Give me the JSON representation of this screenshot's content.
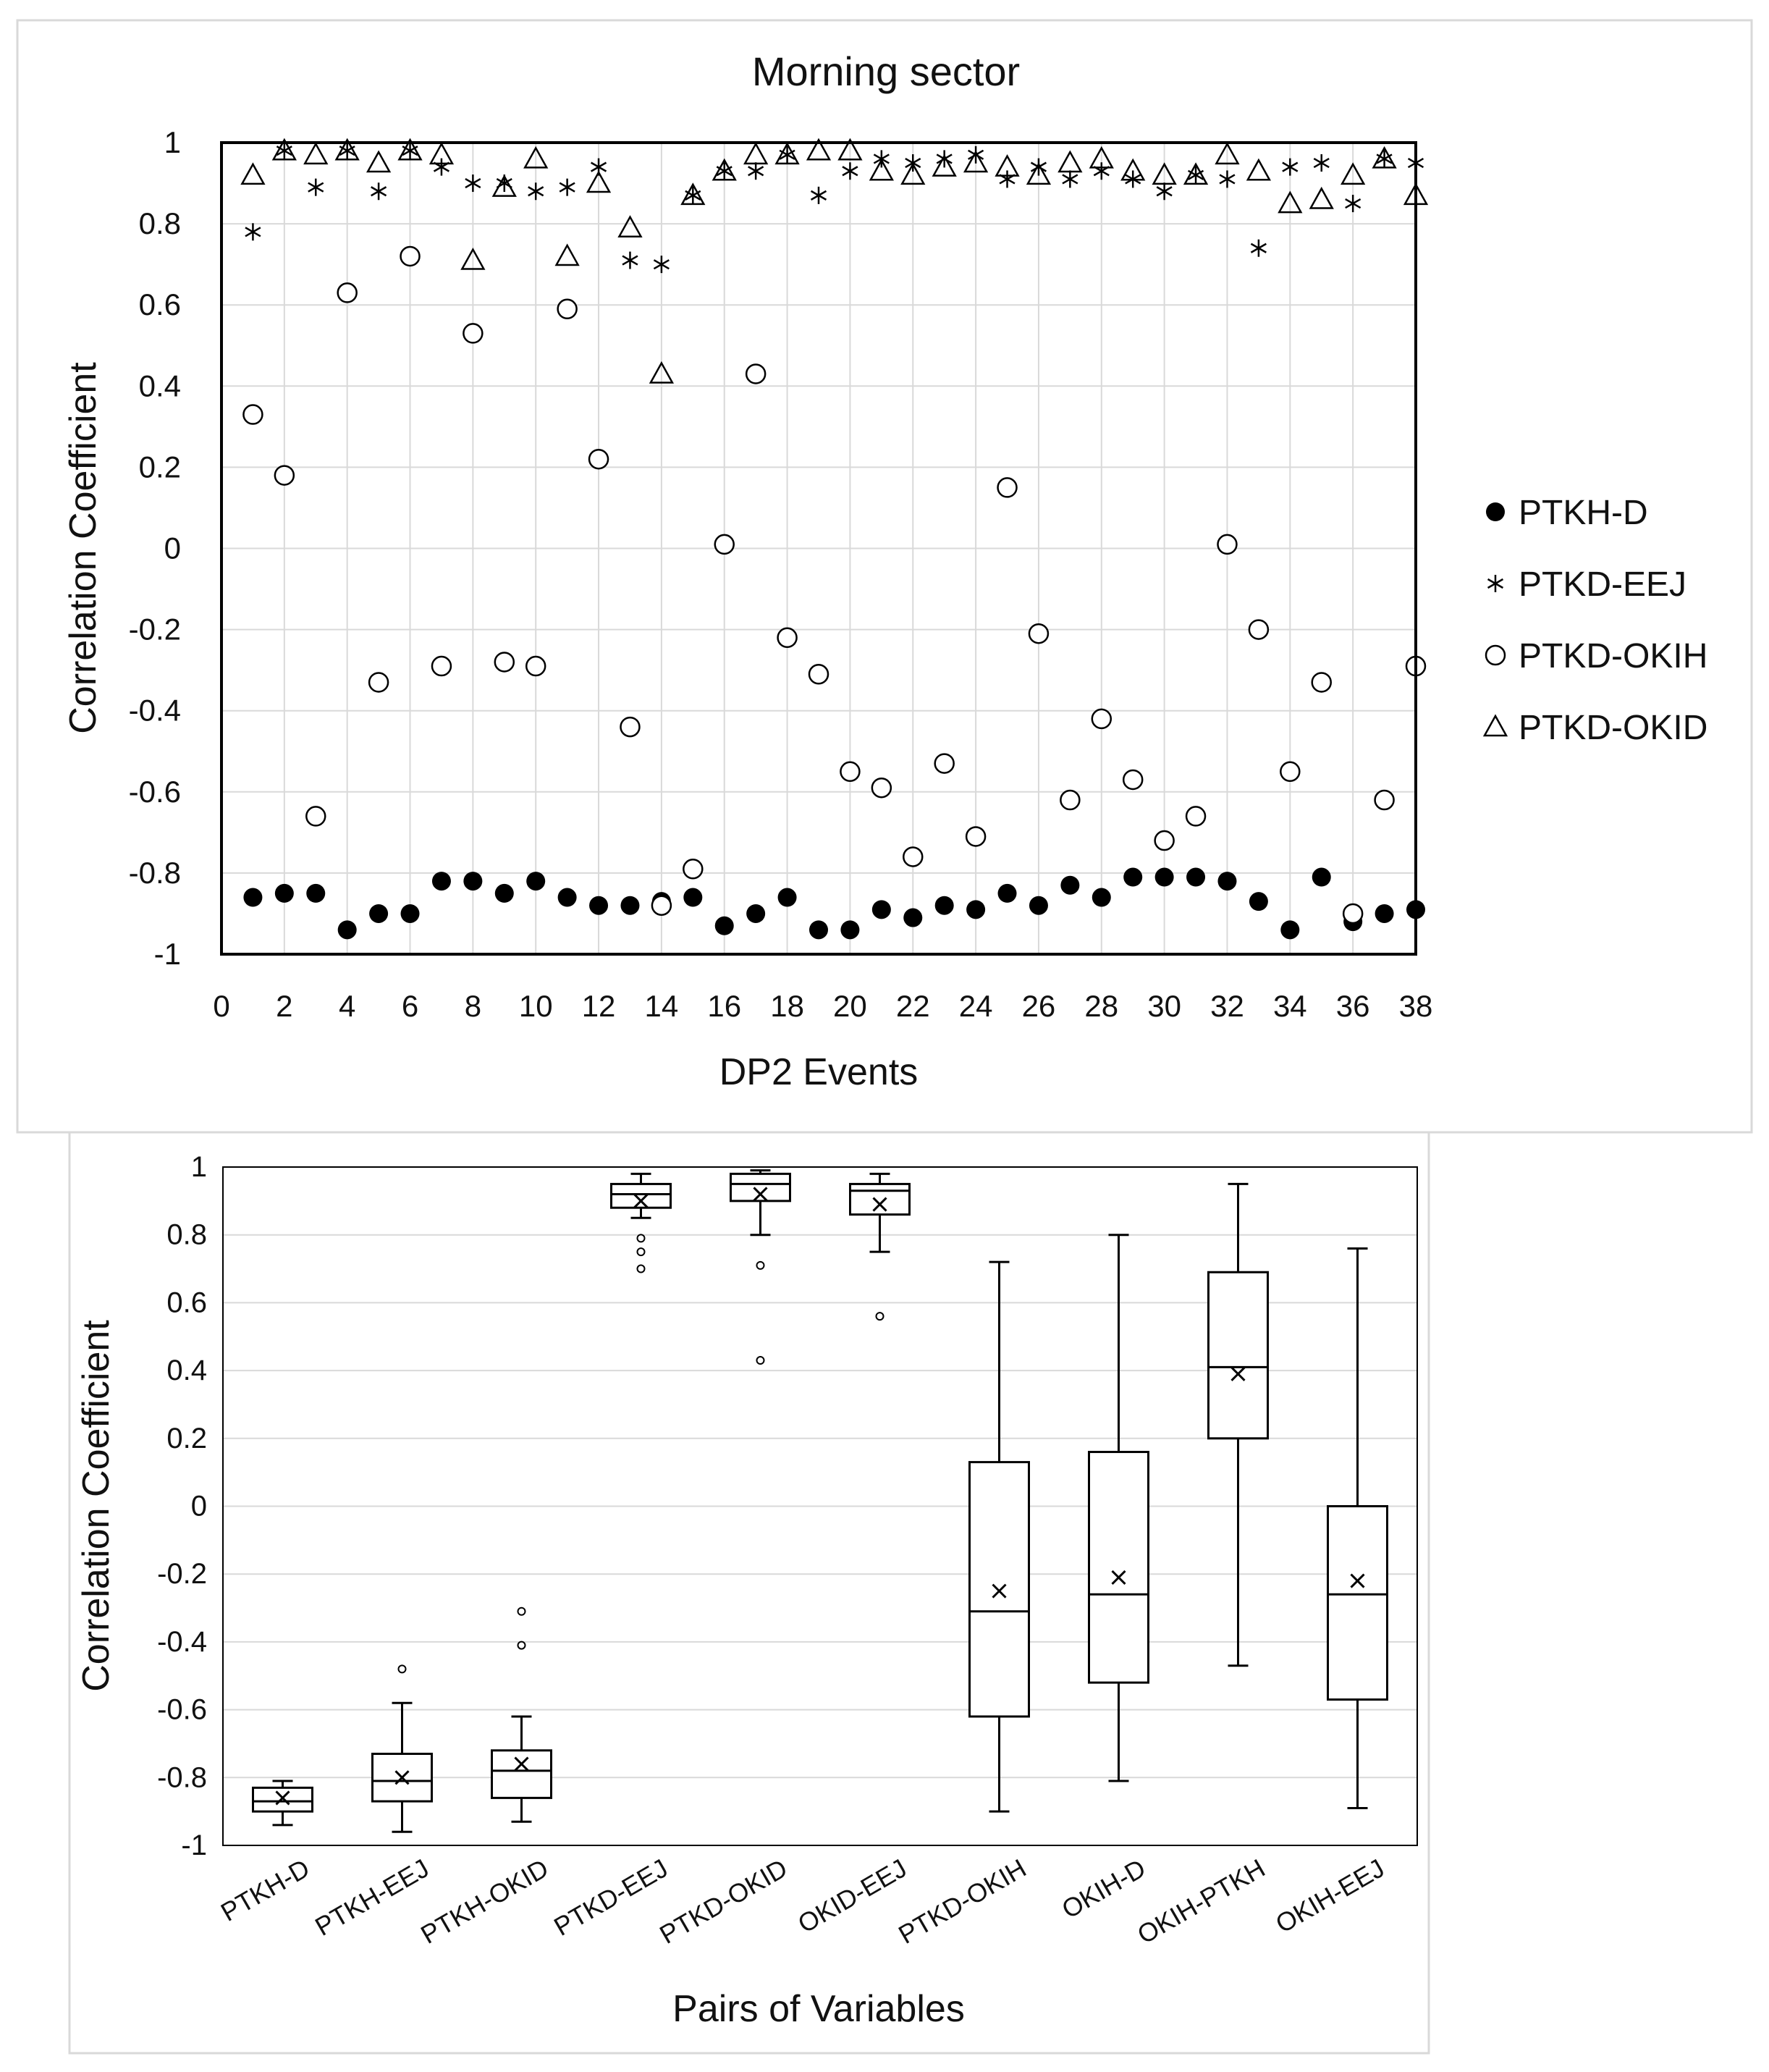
{
  "chart_data": [
    {
      "type": "scatter",
      "title": "Morning sector",
      "xlabel": "DP2 Events",
      "ylabel": "Correlation Coefficient",
      "xlim": [
        0,
        38
      ],
      "ylim": [
        -1,
        1
      ],
      "x_ticks": [
        "0",
        "2",
        "4",
        "6",
        "8",
        "10",
        "12",
        "14",
        "16",
        "18",
        "20",
        "22",
        "24",
        "26",
        "28",
        "30",
        "32",
        "34",
        "36",
        "38"
      ],
      "y_ticks": [
        "1",
        "0.8",
        "0.6",
        "0.4",
        "0.2",
        "0",
        "-0.2",
        "-0.4",
        "-0.6",
        "-0.8",
        "-1"
      ],
      "legend_position": "right",
      "x": [
        1,
        2,
        3,
        4,
        5,
        6,
        7,
        8,
        9,
        10,
        11,
        12,
        13,
        14,
        15,
        16,
        17,
        18,
        19,
        20,
        21,
        22,
        23,
        24,
        25,
        26,
        27,
        28,
        29,
        30,
        31,
        32,
        33,
        34,
        35,
        36,
        37,
        38
      ],
      "series": [
        {
          "name": "PTKH-D",
          "marker": "filled-circle",
          "values": [
            -0.86,
            -0.85,
            -0.85,
            -0.94,
            -0.9,
            -0.9,
            -0.82,
            -0.82,
            -0.85,
            -0.82,
            -0.86,
            -0.88,
            -0.88,
            -0.87,
            -0.86,
            -0.93,
            -0.9,
            -0.86,
            -0.94,
            -0.94,
            -0.89,
            -0.91,
            -0.88,
            -0.89,
            -0.85,
            -0.88,
            -0.83,
            -0.86,
            -0.81,
            -0.81,
            -0.81,
            -0.82,
            -0.87,
            -0.94,
            -0.81,
            -0.92,
            -0.9,
            -0.89
          ]
        },
        {
          "name": "PTKD-EEJ",
          "marker": "asterisk",
          "values": [
            0.78,
            0.98,
            0.89,
            0.98,
            0.88,
            0.98,
            0.94,
            0.9,
            0.9,
            0.88,
            0.89,
            0.94,
            0.71,
            0.7,
            0.87,
            0.93,
            0.93,
            0.97,
            0.87,
            0.93,
            0.96,
            0.95,
            0.96,
            0.97,
            0.91,
            0.94,
            0.91,
            0.93,
            0.91,
            0.88,
            0.92,
            0.91,
            0.74,
            0.94,
            0.95,
            0.85,
            0.96,
            0.95
          ]
        },
        {
          "name": "PTKD-OKIH",
          "marker": "open-circle",
          "values": [
            0.33,
            0.18,
            -0.66,
            0.63,
            -0.33,
            0.72,
            -0.29,
            0.53,
            -0.28,
            -0.29,
            0.59,
            0.22,
            -0.44,
            -0.88,
            -0.79,
            0.01,
            0.43,
            -0.22,
            -0.31,
            -0.55,
            -0.59,
            -0.76,
            -0.53,
            -0.71,
            0.15,
            -0.21,
            -0.62,
            -0.42,
            -0.57,
            -0.72,
            -0.66,
            0.01,
            -0.2,
            -0.55,
            -0.33,
            -0.9,
            -0.62,
            -0.29
          ]
        },
        {
          "name": "PTKD-OKID",
          "marker": "open-triangle",
          "values": [
            0.92,
            0.98,
            0.97,
            0.98,
            0.95,
            0.98,
            0.97,
            0.71,
            0.89,
            0.96,
            0.72,
            0.9,
            0.79,
            0.43,
            0.87,
            0.93,
            0.97,
            0.97,
            0.98,
            0.98,
            0.93,
            0.92,
            0.94,
            0.95,
            0.94,
            0.92,
            0.95,
            0.96,
            0.93,
            0.92,
            0.92,
            0.97,
            0.93,
            0.85,
            0.86,
            0.92,
            0.96,
            0.87
          ]
        }
      ]
    },
    {
      "type": "box",
      "title": "",
      "xlabel": "Pairs of Variables",
      "ylabel": "Correlation Coefficient",
      "ylim": [
        -1,
        1
      ],
      "y_ticks": [
        "1",
        "0.8",
        "0.6",
        "0.4",
        "0.2",
        "0",
        "-0.2",
        "-0.4",
        "-0.6",
        "-0.8",
        "-1"
      ],
      "categories": [
        "PTKH-D",
        "PTKH-EEJ",
        "PTKH-OKID",
        "PTKD-EEJ",
        "PTKD-OKID",
        "OKID-EEJ",
        "PTKD-OKIH",
        "OKIH-D",
        "OKIH-PTKH",
        "OKIH-EEJ"
      ],
      "boxes": [
        {
          "min": -0.94,
          "q1": -0.9,
          "median": -0.87,
          "q3": -0.83,
          "max": -0.81,
          "mean": -0.86,
          "outliers": []
        },
        {
          "min": -0.96,
          "q1": -0.87,
          "median": -0.81,
          "q3": -0.73,
          "max": -0.58,
          "mean": -0.8,
          "outliers": [
            -0.48
          ]
        },
        {
          "min": -0.93,
          "q1": -0.86,
          "median": -0.78,
          "q3": -0.72,
          "max": -0.62,
          "mean": -0.76,
          "outliers": [
            -0.41,
            -0.31
          ]
        },
        {
          "min": 0.85,
          "q1": 0.88,
          "median": 0.92,
          "q3": 0.95,
          "max": 0.98,
          "mean": 0.9,
          "outliers": [
            0.79,
            0.75,
            0.7
          ]
        },
        {
          "min": 0.8,
          "q1": 0.9,
          "median": 0.95,
          "q3": 0.98,
          "max": 0.99,
          "mean": 0.92,
          "outliers": [
            0.71,
            0.43
          ]
        },
        {
          "min": 0.75,
          "q1": 0.86,
          "median": 0.93,
          "q3": 0.95,
          "max": 0.98,
          "mean": 0.89,
          "outliers": [
            0.56
          ]
        },
        {
          "min": -0.9,
          "q1": -0.62,
          "median": -0.31,
          "q3": 0.13,
          "max": 0.72,
          "mean": -0.25,
          "outliers": []
        },
        {
          "min": -0.81,
          "q1": -0.52,
          "median": -0.26,
          "q3": 0.16,
          "max": 0.8,
          "mean": -0.21,
          "outliers": []
        },
        {
          "min": -0.47,
          "q1": 0.2,
          "median": 0.41,
          "q3": 0.69,
          "max": 0.95,
          "mean": 0.39,
          "outliers": []
        },
        {
          "min": -0.89,
          "q1": -0.57,
          "median": -0.26,
          "q3": 0.0,
          "max": 0.76,
          "mean": -0.22,
          "outliers": []
        }
      ]
    }
  ]
}
